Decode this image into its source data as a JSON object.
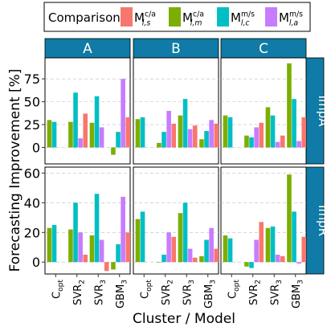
{
  "chart_data": {
    "type": "bar",
    "layout": "facet grid 2 rows x 3 columns",
    "legend": {
      "title": "Comparison",
      "placement": "top",
      "entries": [
        {
          "base": "M",
          "sub": "l,s",
          "sup": "c/a",
          "color": "#F8766D"
        },
        {
          "base": "M",
          "sub": "l,m",
          "sup": "c/a",
          "color": "#7CAE00"
        },
        {
          "base": "M",
          "sub": "l,c",
          "sup": "m/s",
          "color": "#00BFC4"
        },
        {
          "base": "M",
          "sub": "l,a",
          "sup": "m/s",
          "color": "#C77CFF"
        }
      ]
    },
    "column_facets": [
      "A",
      "B",
      "C"
    ],
    "row_facets": [
      "ImpA",
      "ImpR"
    ],
    "xlabel": "Cluster / Model",
    "ylabel": "Forecasting Improvement [%]",
    "categories": [
      {
        "base": "C",
        "sub": "opt"
      },
      {
        "base": "SVR",
        "sub": "2"
      },
      {
        "base": "SVR",
        "sub": "3"
      },
      {
        "base": "GBM",
        "sub": "3"
      }
    ],
    "rows": [
      {
        "ylim": [
          -18,
          98
        ],
        "yticks": [
          0,
          25,
          50,
          75
        ],
        "panels": [
          {
            "facet": "A",
            "values": [
              [
                null,
                30,
                28,
                null
              ],
              [
                null,
                28,
                60,
                10
              ],
              [
                null,
                27,
                56,
                22
              ],
              [
                null,
                -8,
                17,
                75
              ]
            ],
            "values_extra": [
              null,
              37,
              null,
              33
            ]
          },
          {
            "facet": "B",
            "values": [
              [
                null,
                31,
                33,
                null
              ],
              [
                null,
                5,
                17,
                40
              ],
              [
                null,
                35,
                53,
                20
              ],
              [
                null,
                9,
                18,
                30
              ]
            ],
            "values_extra": [
              null,
              26,
              24,
              26
            ]
          },
          {
            "facet": "C",
            "values": [
              [
                null,
                35,
                33,
                null
              ],
              [
                null,
                13,
                11,
                22
              ],
              [
                null,
                44,
                35,
                6
              ],
              [
                null,
                92,
                53,
                7
              ]
            ],
            "values_extra": [
              null,
              27,
              13,
              33
            ]
          }
        ]
      },
      {
        "ylim": [
          -8,
          64
        ],
        "yticks": [
          0,
          20,
          40,
          60
        ],
        "panels": [
          {
            "facet": "A",
            "values": [
              [
                null,
                23,
                25,
                null
              ],
              [
                null,
                22,
                40,
                20
              ],
              [
                null,
                18,
                46,
                15
              ],
              [
                null,
                -5,
                12,
                44
              ]
            ],
            "values_extra": [
              null,
              5,
              -6,
              20
            ]
          },
          {
            "facet": "B",
            "values": [
              [
                null,
                29,
                34,
                null
              ],
              [
                null,
                0,
                5,
                20
              ],
              [
                null,
                33,
                40,
                9
              ],
              [
                null,
                4,
                15,
                23
              ]
            ],
            "values_extra": [
              null,
              17,
              3,
              9
            ]
          },
          {
            "facet": "C",
            "values": [
              [
                null,
                18,
                16,
                null
              ],
              [
                null,
                -3,
                -4,
                15
              ],
              [
                null,
                23,
                24,
                5
              ],
              [
                null,
                59,
                34,
                -1
              ]
            ],
            "values_extra": [
              null,
              27,
              4,
              17
            ]
          }
        ]
      }
    ],
    "grid": true
  }
}
